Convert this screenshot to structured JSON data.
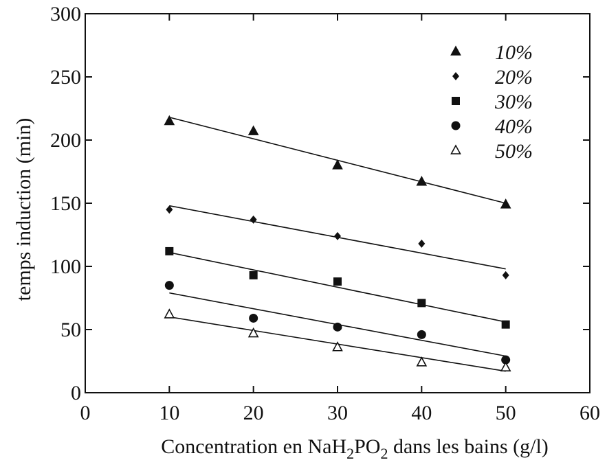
{
  "chart_data": {
    "type": "scatter",
    "xlabel": "Concentration en NaH₂PO₂ dans les bains (g/l)",
    "xlabel_parts": {
      "pre": "Concentration en NaH",
      "sub1": "2",
      "mid": "PO",
      "sub2": "2",
      "post": " dans les bains (g/l)"
    },
    "ylabel": "temps induction (min)",
    "xlim": [
      0,
      60
    ],
    "ylim": [
      0,
      300
    ],
    "xticks": [
      "0",
      "10",
      "20",
      "30",
      "40",
      "50",
      "60"
    ],
    "yticks": [
      "0",
      "50",
      "100",
      "150",
      "200",
      "250",
      "300"
    ],
    "grid": false,
    "legend_position": "top-right",
    "x": [
      10,
      20,
      30,
      40,
      50
    ],
    "series": [
      {
        "name": "10%",
        "marker": "filled-triangle",
        "values": [
          215,
          207,
          180,
          167,
          149
        ],
        "fit": [
          218,
          150
        ]
      },
      {
        "name": "20%",
        "marker": "filled-diamond",
        "values": [
          145,
          137,
          124,
          118,
          93
        ],
        "fit": [
          148,
          98
        ]
      },
      {
        "name": "30%",
        "marker": "filled-square",
        "values": [
          112,
          93,
          88,
          71,
          54
        ],
        "fit": [
          111,
          56
        ]
      },
      {
        "name": "40%",
        "marker": "filled-circle",
        "values": [
          85,
          59,
          52,
          46,
          26
        ],
        "fit": [
          79,
          29
        ]
      },
      {
        "name": "50%",
        "marker": "open-triangle",
        "values": [
          62,
          47,
          36,
          24,
          20
        ],
        "fit": [
          60,
          17
        ]
      }
    ]
  }
}
